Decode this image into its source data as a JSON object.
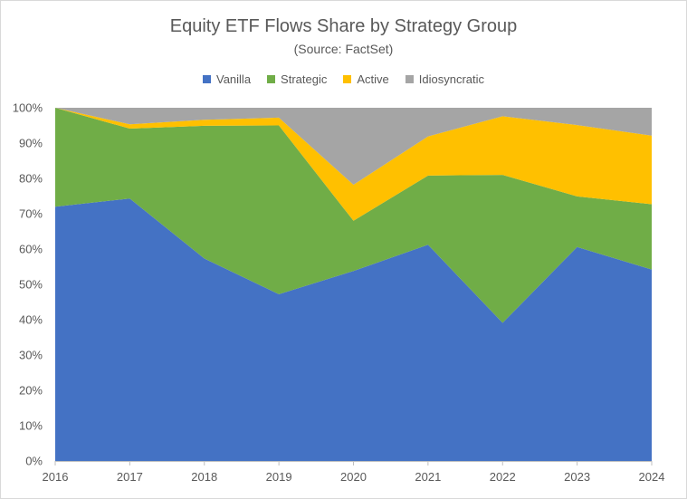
{
  "chart_data": {
    "type": "area",
    "stacked": true,
    "title": "Equity ETF Flows Share by Strategy Group",
    "subtitle": "(Source: FactSet)",
    "x": [
      "2016",
      "2017",
      "2018",
      "2019",
      "2020",
      "2021",
      "2022",
      "2023",
      "2024"
    ],
    "series": [
      {
        "name": "Vanilla",
        "color": "#4472c4",
        "values": [
          72,
          74.3,
          57.3,
          47.2,
          53.8,
          61.2,
          39.1,
          60.6,
          54.2
        ]
      },
      {
        "name": "Strategic",
        "color": "#70ad47",
        "values": [
          28,
          19.8,
          37.6,
          47.8,
          14.2,
          19.6,
          41.9,
          14.3,
          18.5
        ]
      },
      {
        "name": "Active",
        "color": "#ffc000",
        "values": [
          0,
          1.2,
          1.7,
          2.2,
          10.2,
          11.1,
          16.6,
          20.2,
          19.4
        ]
      },
      {
        "name": "Idiosyncratic",
        "color": "#a5a5a5",
        "values": [
          0,
          4.7,
          3.4,
          2.8,
          21.8,
          8.1,
          2.4,
          4.9,
          7.9
        ]
      }
    ],
    "ylim": [
      0,
      100
    ],
    "yticks": [
      "0%",
      "10%",
      "20%",
      "30%",
      "40%",
      "50%",
      "60%",
      "70%",
      "80%",
      "90%",
      "100%"
    ],
    "legend_position": "top",
    "grid": false
  }
}
